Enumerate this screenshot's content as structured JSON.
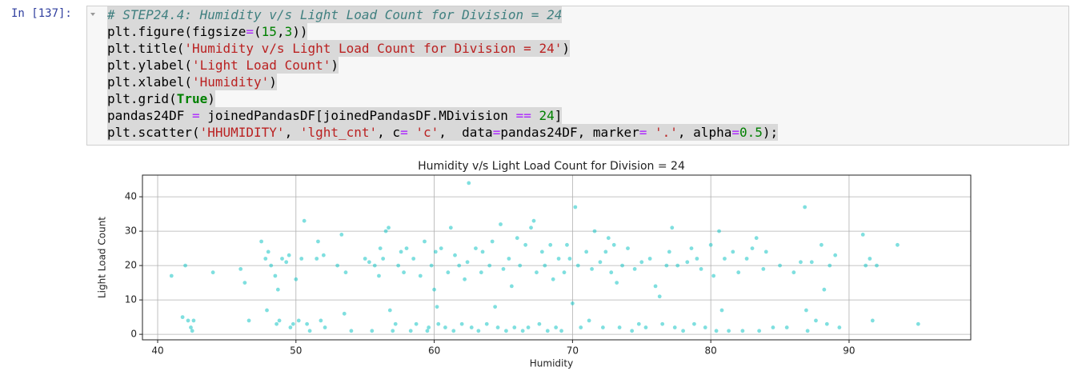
{
  "prompt": "In [137]:",
  "code": [
    "# STEP24.4: Humidity v/s Light Load Count for Division = 24",
    "plt.figure(figsize=(15,3))",
    "plt.title('Humidity v/s Light Load Count for Division = 24')",
    "plt.ylabel('Light Load Count')",
    "plt.xlabel('Humidity')",
    "plt.grid(True)",
    "pandas24DF = joinedPandasDF[joinedPandasDF.MDivision == 24]",
    "plt.scatter('HHUMIDITY', 'lght_cnt', c= 'c',  data=pandas24DF, marker= '.', alpha=0.5);"
  ],
  "chart_data": {
    "type": "scatter",
    "title": "Humidity v/s Light Load Count for Division = 24",
    "xlabel": "Humidity",
    "ylabel": "Light Load Count",
    "color": "#00bfbf",
    "alpha": 0.5,
    "grid": true,
    "xlim": [
      38.9,
      98.8
    ],
    "ylim": [
      -1.6,
      46.3
    ],
    "xticks": [
      40,
      50,
      60,
      70,
      80,
      90
    ],
    "yticks": [
      0,
      10,
      20,
      30,
      40
    ],
    "x": [
      41,
      42,
      41.8,
      42.2,
      42.4,
      42.5,
      42.6,
      44,
      46,
      46.3,
      46.6,
      47.5,
      47.8,
      47.9,
      48,
      48.2,
      48.5,
      48.6,
      48.7,
      48.8,
      49,
      49.3,
      49.5,
      49.6,
      49.8,
      50,
      50.2,
      50.4,
      50.6,
      50.8,
      51,
      51.5,
      51.6,
      51.8,
      52,
      52.1,
      53,
      53.3,
      53.5,
      53.6,
      54,
      55,
      55.3,
      55.5,
      55.7,
      56,
      56.1,
      56.3,
      56.5,
      56.7,
      56.8,
      57,
      57.2,
      57.4,
      57.6,
      57.8,
      58,
      58.3,
      58.5,
      58.7,
      59,
      59.3,
      59.5,
      59.6,
      59.8,
      60,
      60.1,
      60.2,
      60.3,
      60.5,
      60.8,
      61,
      61.2,
      61.4,
      61.5,
      61.8,
      62,
      62.2,
      62.4,
      62.5,
      62.7,
      63,
      63.2,
      63.4,
      63.5,
      63.8,
      64,
      64.2,
      64.4,
      64.6,
      64.8,
      65,
      65.2,
      65.4,
      65.6,
      65.8,
      66,
      66.2,
      66.4,
      66.6,
      66.8,
      67,
      67.2,
      67.4,
      67.6,
      67.8,
      68,
      68.2,
      68.4,
      68.6,
      68.8,
      69,
      69.2,
      69.4,
      69.6,
      69.8,
      70,
      70.2,
      70.4,
      70.6,
      71,
      71.2,
      71.4,
      71.6,
      72,
      72.2,
      72.4,
      72.6,
      72.8,
      73,
      73.2,
      73.4,
      73.6,
      74,
      74.3,
      74.5,
      74.8,
      75,
      75.3,
      75.6,
      76,
      76.3,
      76.5,
      76.8,
      77,
      77.2,
      77.4,
      77.6,
      78,
      78.3,
      78.6,
      78.8,
      79,
      79.3,
      79.6,
      80,
      80.2,
      80.4,
      80.6,
      80.8,
      81,
      81.3,
      81.6,
      82,
      82.3,
      82.6,
      83,
      83.3,
      83.5,
      83.8,
      84,
      84.5,
      85,
      85.5,
      86,
      86.5,
      86.8,
      86.9,
      87,
      87.3,
      87.6,
      88,
      88.2,
      88.4,
      88.6,
      89,
      89.3,
      91,
      91.2,
      91.5,
      91.7,
      92,
      93.5,
      95
    ],
    "y": [
      17,
      20,
      5,
      4,
      2,
      1,
      4,
      18,
      19,
      15,
      4,
      27,
      22,
      7,
      24,
      20,
      17,
      3,
      13,
      4,
      22,
      21,
      23,
      2,
      3,
      16,
      4,
      22,
      33,
      3,
      1,
      22,
      27,
      4,
      23,
      2,
      20,
      29,
      6,
      18,
      1,
      22,
      21,
      1,
      20,
      17,
      25,
      22,
      30,
      31,
      7,
      1,
      3,
      20,
      24,
      18,
      25,
      1,
      22,
      3,
      17,
      27,
      1,
      2,
      20,
      13,
      24,
      8,
      3,
      25,
      2,
      18,
      31,
      1,
      23,
      20,
      3,
      16,
      21,
      44,
      2,
      25,
      1,
      18,
      24,
      3,
      20,
      27,
      8,
      2,
      32,
      19,
      1,
      22,
      14,
      2,
      28,
      20,
      1,
      26,
      2,
      31,
      33,
      18,
      3,
      24,
      20,
      1,
      26,
      16,
      2,
      22,
      1,
      18,
      26,
      22,
      9,
      37,
      20,
      2,
      24,
      4,
      19,
      30,
      21,
      2,
      24,
      28,
      18,
      26,
      15,
      2,
      20,
      25,
      1,
      19,
      3,
      21,
      2,
      22,
      14,
      11,
      3,
      20,
      24,
      31,
      2,
      20,
      1,
      21,
      25,
      3,
      22,
      19,
      2,
      26,
      17,
      1,
      30,
      7,
      22,
      1,
      24,
      18,
      1,
      22,
      25,
      28,
      1,
      19,
      24,
      2,
      20,
      2,
      18,
      21,
      37,
      7,
      1,
      21,
      4,
      26,
      13,
      3,
      20,
      23,
      2,
      29,
      20,
      22,
      4,
      20,
      26,
      3
    ]
  }
}
